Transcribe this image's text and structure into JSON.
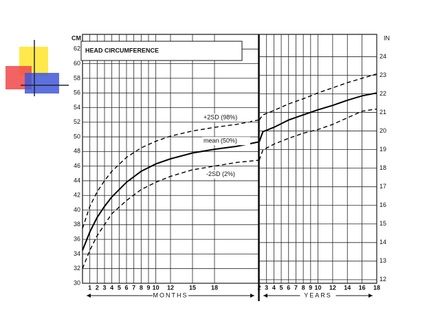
{
  "chart_data": [
    {
      "type": "line",
      "title": "HEAD CIRCUMFERENCE",
      "y_label": "CM",
      "x_label": "MONTHS",
      "x": [
        0,
        1,
        2,
        3,
        4,
        6,
        8,
        10,
        12,
        15,
        18,
        21,
        24
      ],
      "xlim": [
        0,
        24
      ],
      "xticks": [
        1,
        2,
        3,
        4,
        5,
        6,
        7,
        8,
        9,
        10,
        12,
        15,
        18
      ],
      "ylim": [
        30,
        64
      ],
      "yticks": [
        30,
        32,
        34,
        36,
        38,
        40,
        42,
        44,
        46,
        48,
        50,
        52,
        54,
        56,
        58,
        60,
        62
      ],
      "grid": true,
      "series": [
        {
          "name": "+2SD (98%)",
          "color": "#000000",
          "dashed": true,
          "values": [
            37.5,
            40.5,
            42.5,
            44,
            45.3,
            47.2,
            48.5,
            49.4,
            50.1,
            50.8,
            51.3,
            51.7,
            52.3
          ]
        },
        {
          "name": "mean (50%)",
          "color": "#000000",
          "dashed": false,
          "values": [
            34.5,
            37,
            39,
            40.5,
            41.8,
            43.8,
            45.3,
            46.3,
            47,
            47.8,
            48.3,
            48.7,
            49.3
          ]
        },
        {
          "name": "-2SD (2%)",
          "color": "#000000",
          "dashed": true,
          "values": [
            32,
            34.5,
            36.5,
            38,
            39.5,
            41.3,
            42.8,
            43.8,
            44.6,
            45.5,
            46,
            46.5,
            46.8
          ]
        }
      ]
    },
    {
      "type": "line",
      "y2_label": "IN",
      "x_label": "YEARS",
      "x": [
        2,
        2.5,
        4,
        6,
        8,
        10,
        12,
        14,
        16,
        18
      ],
      "xlim": [
        2,
        18
      ],
      "xticks": [
        2,
        3,
        4,
        5,
        6,
        7,
        8,
        9,
        10,
        12,
        14,
        16,
        18
      ],
      "ylim": [
        30,
        64
      ],
      "y2lim": [
        11.81,
        25.2
      ],
      "y2ticks": [
        12,
        13,
        14,
        15,
        16,
        17,
        18,
        19,
        20,
        21,
        22,
        23,
        24
      ],
      "grid": true,
      "series": [
        {
          "color": "#000000",
          "dashed": true,
          "values": [
            52.3,
            53,
            53.6,
            54.5,
            55.2,
            56,
            56.7,
            57.4,
            58,
            58.6
          ]
        },
        {
          "color": "#000000",
          "dashed": false,
          "values": [
            49.3,
            50.7,
            51.3,
            52.3,
            53,
            53.7,
            54.3,
            55,
            55.6,
            56
          ]
        },
        {
          "color": "#000000",
          "dashed": true,
          "values": [
            46.8,
            48.2,
            49,
            49.8,
            50.5,
            51,
            51.7,
            52.6,
            53.5,
            53.8
          ]
        }
      ]
    }
  ]
}
